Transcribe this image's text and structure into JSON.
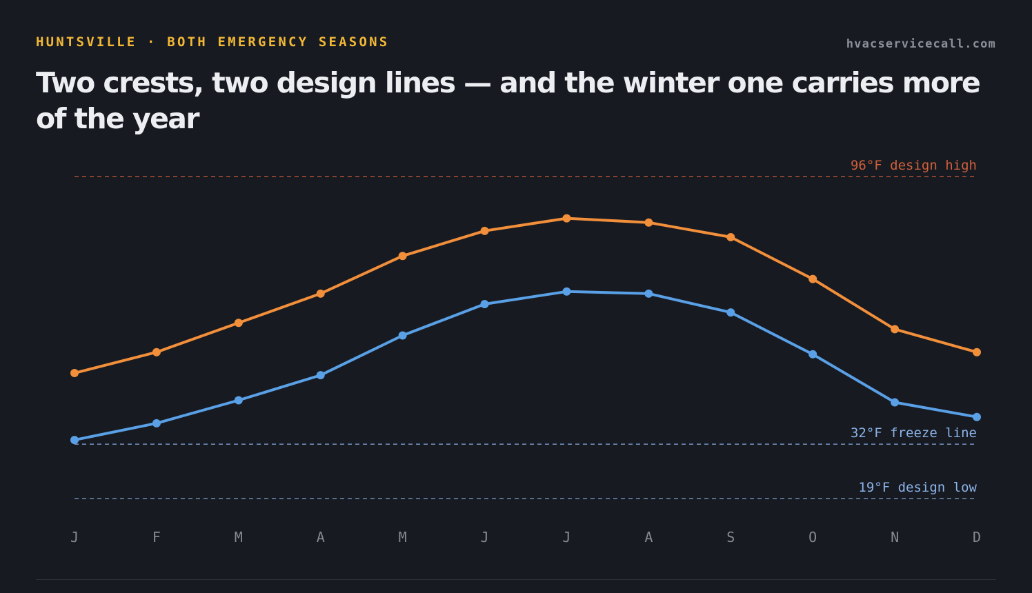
{
  "header": {
    "kicker": "HUNTSVILLE · BOTH EMERGENCY SEASONS",
    "source": "hvacservicecall.com",
    "title": "Two crests, two design lines — and the winter one carries more of the year"
  },
  "chart_data": {
    "type": "line",
    "title": "Two crests, two design lines — and the winter one carries more of the year",
    "xlabel": "",
    "ylabel": "",
    "categories": [
      "J",
      "F",
      "M",
      "A",
      "M",
      "J",
      "J",
      "A",
      "S",
      "O",
      "N",
      "D"
    ],
    "series": [
      {
        "key": "high",
        "color": "#f28f3b",
        "values": [
          49,
          54,
          61,
          68,
          77,
          83,
          86,
          85,
          81.5,
          71.5,
          59.5,
          54
        ]
      },
      {
        "key": "low",
        "color": "#5aa0e6",
        "values": [
          33,
          37,
          42.5,
          48.5,
          58,
          65.5,
          68.5,
          68,
          63.5,
          53.5,
          42,
          38.5
        ]
      }
    ],
    "reference_lines": [
      {
        "value": 96,
        "label": "96°F design high",
        "color": "#d0603b"
      },
      {
        "value": 32,
        "label": "32°F freeze line",
        "color": "#8bb3e8"
      },
      {
        "value": 19,
        "label": "19°F design low",
        "color": "#8bb3e8"
      }
    ],
    "ylim": [
      10,
      100
    ],
    "grid": false,
    "legend": "none"
  }
}
